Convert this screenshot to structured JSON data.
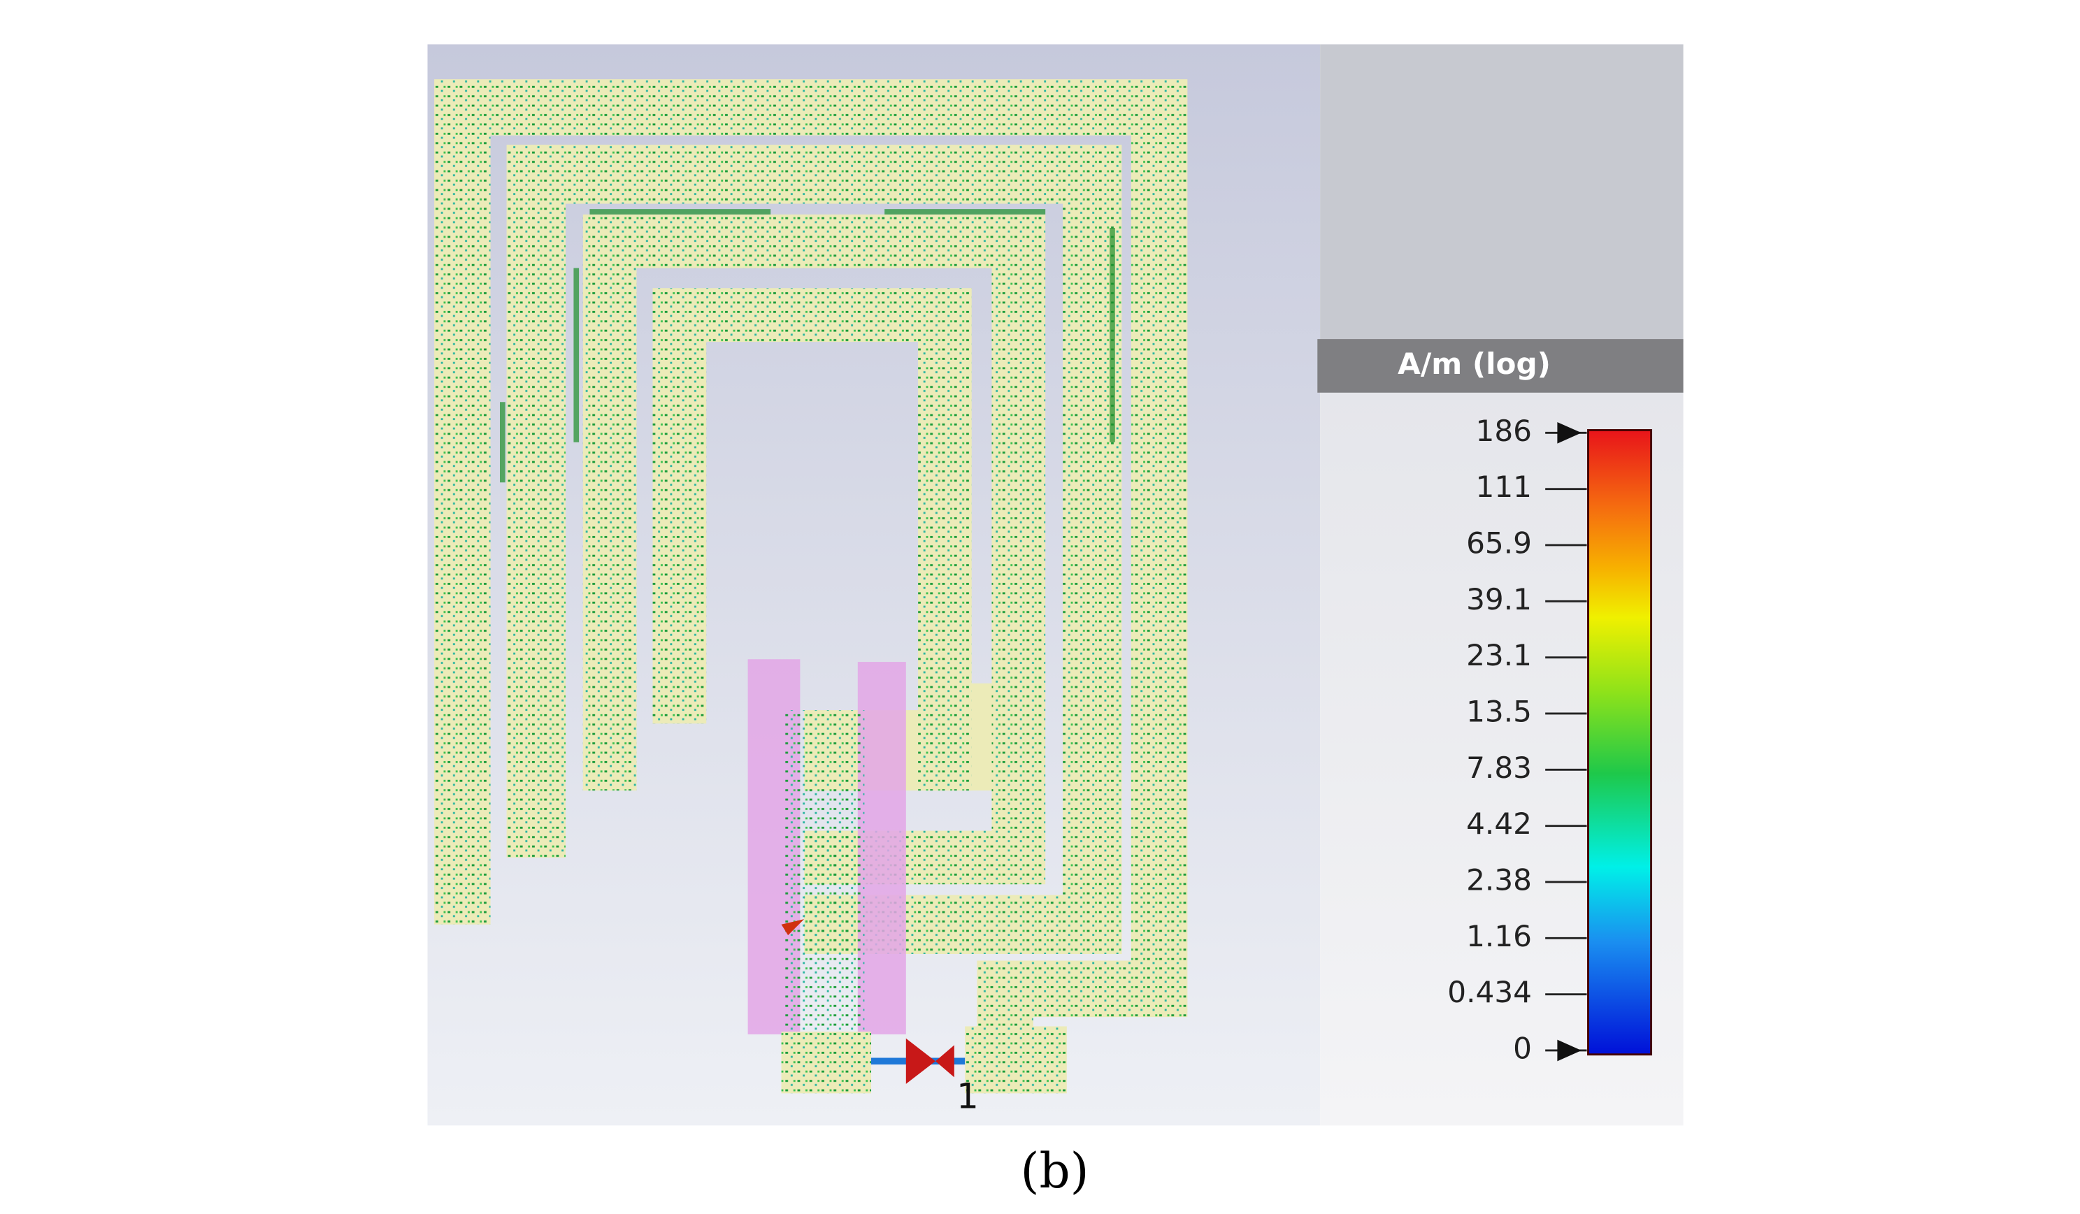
{
  "legend": {
    "title": "A/m (log)",
    "labels": [
      "186",
      "111",
      "65.9",
      "39.1",
      "23.1",
      "13.5",
      "7.83",
      "4.42",
      "2.38",
      "1.16",
      "0.434",
      "0"
    ]
  },
  "port": {
    "label": "1"
  },
  "caption": "(b)"
}
